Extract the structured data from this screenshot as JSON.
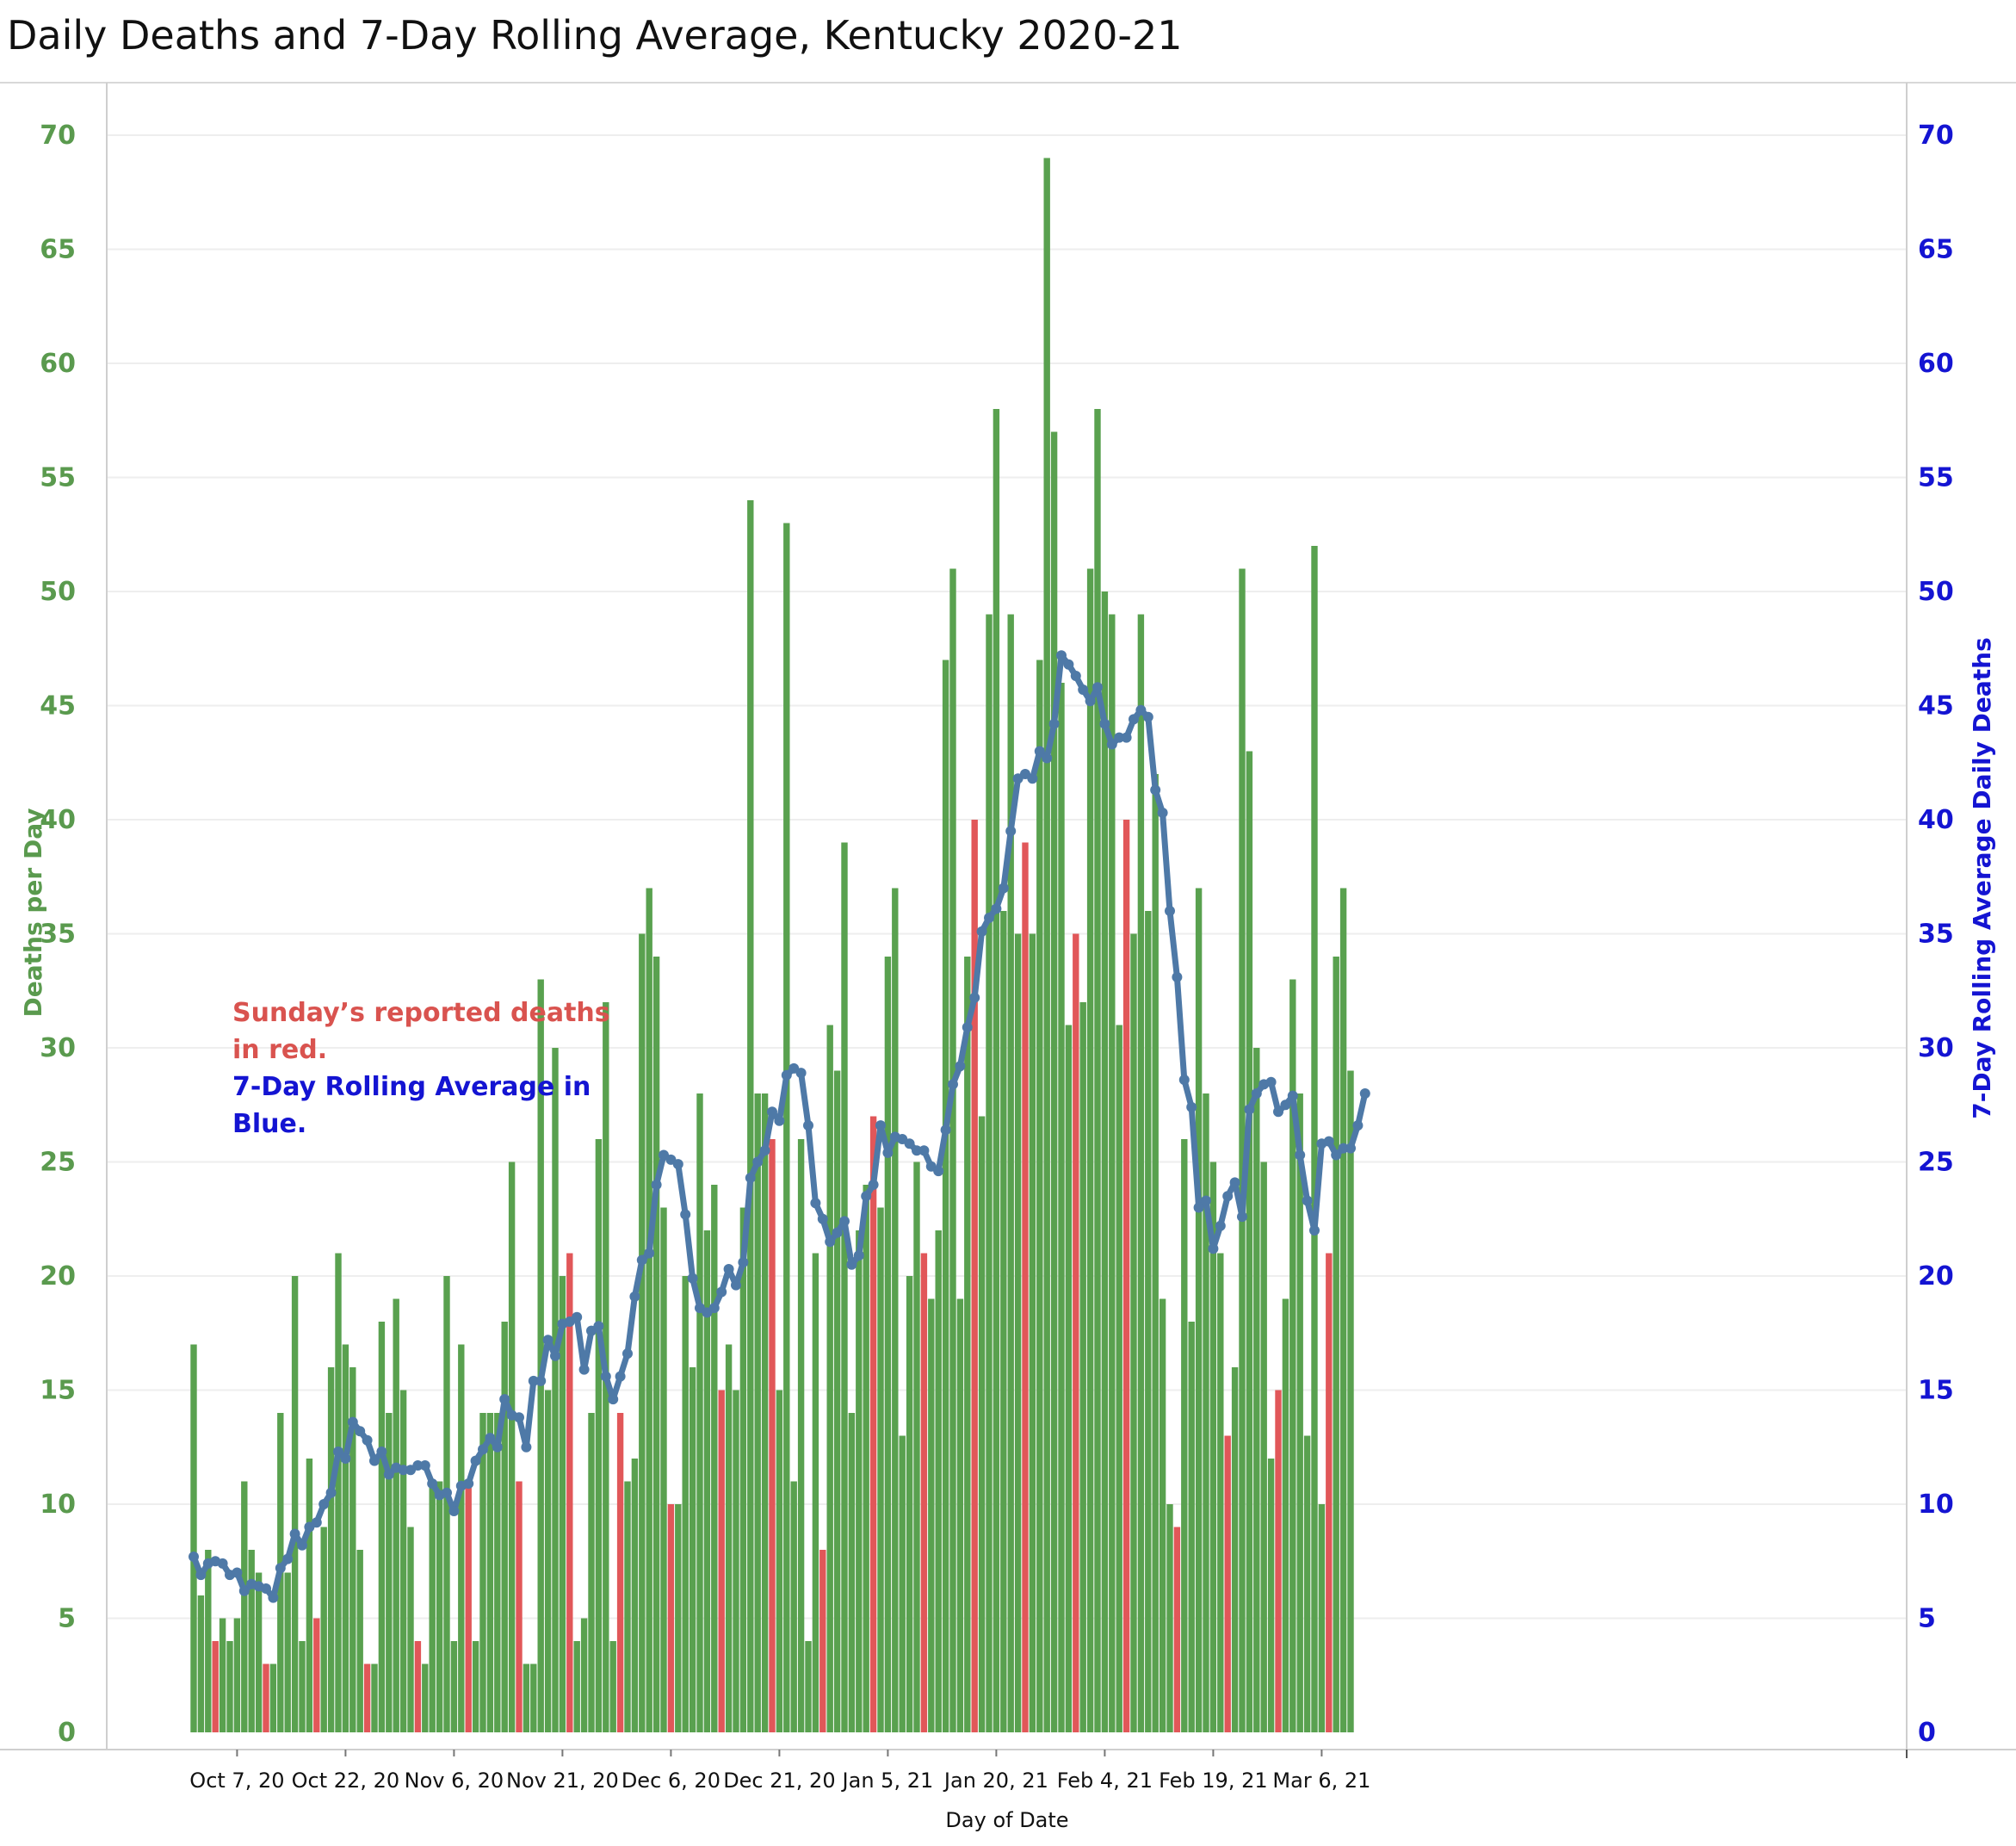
{
  "chart_data": {
    "type": "bar",
    "title": "Daily Deaths and 7-Day Rolling Average,  Kentucky 2020-21",
    "xlabel": "Day of Date",
    "ylabel": "Deaths per Day",
    "ylabel_right": "7-Day Rolling Average Daily  Deaths",
    "ylim": [
      0,
      72
    ],
    "y_ticks": [
      0,
      5,
      10,
      15,
      20,
      25,
      30,
      35,
      40,
      45,
      50,
      55,
      60,
      65,
      70
    ],
    "x_tick_labels": [
      "Oct 7, 20",
      "Oct 22, 20",
      "Nov 6, 20",
      "Nov 21, 20",
      "Dec 6, 20",
      "Dec 21, 20",
      "Jan 5, 21",
      "Jan 20, 21",
      "Feb 4, 21",
      "Feb 19, 21",
      "Mar 6, 21"
    ],
    "x_tick_day_index": [
      6,
      21,
      36,
      51,
      66,
      81,
      96,
      111,
      126,
      141,
      156
    ],
    "grid": true,
    "colors": {
      "weekday": "#59a14f",
      "sunday": "#e15759",
      "rolling_average": "#4e79a7"
    },
    "annotation": {
      "red_lines": [
        "Sunday’s reported deaths",
        "in red."
      ],
      "blue_lines": [
        "7-Day Rolling Average in",
        "Blue."
      ]
    },
    "first_date": "Oct 1, 20",
    "sunday_indices": [
      3,
      10,
      17,
      24,
      31,
      38,
      45,
      52,
      59,
      66,
      73,
      80,
      87,
      94,
      101,
      108,
      115,
      122,
      129,
      136,
      143,
      150,
      157
    ],
    "series": [
      {
        "name": "Deaths per Day",
        "values": [
          17,
          6,
          8,
          4,
          5,
          4,
          5,
          11,
          8,
          7,
          3,
          3,
          14,
          7,
          20,
          4,
          12,
          5,
          9,
          16,
          21,
          17,
          16,
          8,
          3,
          3,
          18,
          14,
          19,
          15,
          9,
          4,
          3,
          11,
          11,
          20,
          4,
          17,
          11,
          4,
          14,
          14,
          14,
          18,
          25,
          11,
          3,
          3,
          33,
          15,
          30,
          20,
          21,
          4,
          5,
          14,
          26,
          32,
          4,
          14,
          11,
          12,
          35,
          37,
          34,
          23,
          10,
          10,
          20,
          16,
          28,
          22,
          24,
          15,
          17,
          15,
          23,
          54,
          28,
          28,
          26,
          15,
          53,
          11,
          26,
          4,
          21,
          8,
          31,
          29,
          39,
          14,
          22,
          24,
          27,
          23,
          34,
          37,
          13,
          20,
          25,
          21,
          19,
          22,
          47,
          51,
          19,
          34,
          40,
          27,
          49,
          58,
          36,
          49,
          35,
          39,
          35,
          47,
          69,
          57,
          46,
          31,
          35,
          32,
          51,
          58,
          50,
          49,
          31,
          40,
          35,
          49,
          36,
          42,
          19,
          10,
          9,
          26,
          18,
          37,
          28,
          25,
          21,
          13,
          16,
          51,
          43,
          30,
          25,
          12,
          15,
          19,
          33,
          28,
          13,
          52,
          10,
          21,
          34,
          37,
          29
        ]
      },
      {
        "name": "7-Day Rolling Average",
        "values": [
          7.7,
          6.9,
          7.4,
          7.5,
          7.4,
          6.9,
          7.0,
          6.2,
          6.5,
          6.4,
          6.3,
          5.9,
          7.2,
          7.6,
          8.7,
          8.2,
          9.0,
          9.2,
          10.0,
          10.5,
          12.3,
          12.0,
          13.6,
          13.2,
          12.8,
          11.9,
          12.3,
          11.3,
          11.6,
          11.5,
          11.5,
          11.7,
          11.7,
          10.9,
          10.4,
          10.5,
          9.7,
          10.8,
          10.9,
          11.9,
          12.4,
          12.9,
          12.5,
          14.6,
          13.9,
          13.8,
          12.5,
          15.4,
          15.4,
          17.2,
          16.5,
          17.9,
          18.0,
          18.2,
          15.9,
          17.6,
          17.8,
          15.6,
          14.6,
          15.6,
          16.6,
          19.1,
          20.7,
          21.0,
          24.0,
          25.3,
          25.1,
          24.9,
          22.7,
          19.9,
          18.6,
          18.4,
          18.6,
          19.3,
          20.3,
          19.6,
          20.6,
          24.3,
          25.0,
          25.5,
          27.2,
          26.8,
          28.8,
          29.1,
          28.9,
          26.6,
          23.2,
          22.5,
          21.5,
          21.9,
          22.4,
          20.5,
          20.9,
          23.5,
          24.0,
          26.6,
          25.4,
          26.1,
          26.0,
          25.8,
          25.5,
          25.5,
          24.8,
          24.6,
          26.4,
          28.4,
          29.2,
          30.9,
          32.2,
          35.1,
          35.7,
          36.1,
          37.0,
          39.5,
          41.8,
          42.0,
          41.8,
          43.0,
          42.7,
          44.2,
          47.2,
          46.8,
          46.3,
          45.7,
          45.2,
          45.8,
          44.2,
          43.3,
          43.6,
          43.6,
          44.4,
          44.8,
          44.5,
          41.3,
          40.3,
          36.0,
          33.1,
          28.6,
          27.4,
          23.0,
          23.3,
          21.2,
          22.2,
          23.5,
          24.1,
          22.6,
          27.3,
          28.0,
          28.4,
          28.5,
          27.2,
          27.5,
          27.9,
          25.3,
          23.3,
          22.0,
          25.8,
          25.9,
          25.3,
          25.6,
          25.6,
          26.6,
          28.0
        ]
      }
    ]
  }
}
